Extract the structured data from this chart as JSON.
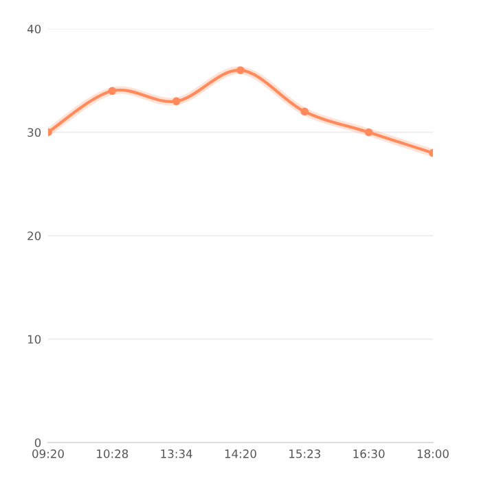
{
  "chart_data": {
    "type": "line",
    "categories": [
      "09:20",
      "10:28",
      "13:34",
      "14:20",
      "15:23",
      "16:30",
      "18:00"
    ],
    "series": [
      {
        "color": "#ff8a5c",
        "values": [
          30,
          34,
          33,
          36,
          32,
          30,
          28
        ]
      }
    ],
    "ylim": [
      0,
      40
    ],
    "yticks": [
      0,
      10,
      20,
      30,
      40
    ],
    "grid": "y",
    "marker": "circle",
    "line_style": "solid",
    "legend": false
  }
}
